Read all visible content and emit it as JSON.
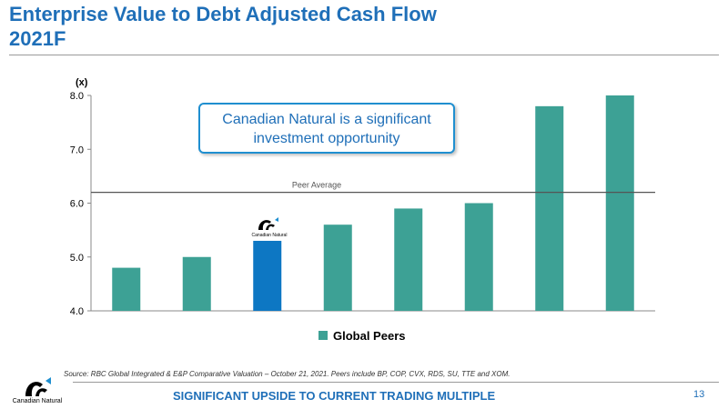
{
  "slide": {
    "title_line1": "Enterprise Value to Debt Adjusted Cash Flow",
    "title_line2": "2021F",
    "callout_line1": "Canadian Natural is a significant",
    "callout_line2": "investment opportunity",
    "source": "Source: RBC Global Integrated & E&P Comparative Valuation – October 21, 2021. Peers include BP, COP, CVX, RDS, SU, TTE and XOM.",
    "footer": "SIGNIFICANT UPSIDE TO CURRENT TRADING MULTIPLE",
    "page_number": "13",
    "logo_text": "Canadian Natural",
    "bar_logo_text": "Canadian Natural"
  },
  "chart_data": {
    "type": "bar",
    "title": "Enterprise Value to Debt Adjusted Cash Flow 2021F",
    "ylabel": "(x)",
    "xlabel": "",
    "ylim": [
      4.0,
      8.0
    ],
    "yticks": [
      "4.0",
      "5.0",
      "6.0",
      "7.0",
      "8.0"
    ],
    "grid": false,
    "values": [
      4.8,
      5.0,
      5.3,
      5.6,
      5.9,
      6.0,
      7.8,
      8.0
    ],
    "highlight_index": 2,
    "highlight_label": "Canadian Natural",
    "reference_line": {
      "label": "Peer Average",
      "value": 6.2
    },
    "legend": {
      "position": "bottom",
      "entries": [
        "Global Peers"
      ]
    },
    "colors": {
      "peer": "#3da195",
      "highlight": "#0d77c3",
      "reference": "#555555"
    }
  }
}
